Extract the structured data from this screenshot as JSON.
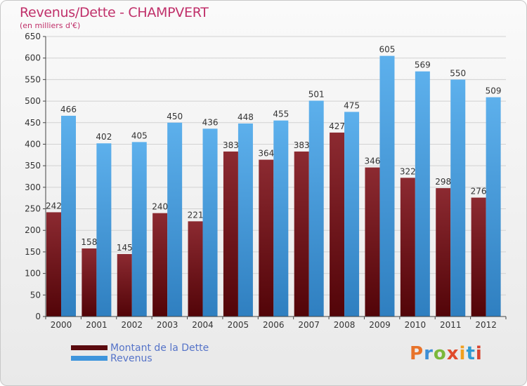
{
  "header": {
    "title": "Revenus/Dette - CHAMPVERT",
    "subtitle": "(en milliers d'€)"
  },
  "legend": {
    "items": [
      {
        "label": "Montant de la Dette",
        "color": "#7a1a1e"
      },
      {
        "label": "Revenus",
        "color": "#4aa3e6"
      }
    ]
  },
  "brand": {
    "letters": [
      "P",
      "r",
      "o",
      "x",
      "i",
      "t",
      "i"
    ],
    "colors": [
      "#e8732a",
      "#3d8fd6",
      "#7bb83a",
      "#e04b2c",
      "#f0a020",
      "#2f9bd3",
      "#d8452f"
    ]
  },
  "chart_data": {
    "type": "bar",
    "title": "Revenus/Dette - CHAMPVERT",
    "subtitle": "(en milliers d'€)",
    "xlabel": "",
    "ylabel": "",
    "ylim": [
      0,
      650
    ],
    "yticks": [
      0,
      50,
      100,
      150,
      200,
      250,
      300,
      350,
      400,
      450,
      500,
      550,
      600,
      650
    ],
    "grid": true,
    "legend_position": "bottom-left",
    "categories": [
      "2000",
      "2001",
      "2002",
      "2003",
      "2004",
      "2005",
      "2006",
      "2007",
      "2008",
      "2009",
      "2010",
      "2011",
      "2012"
    ],
    "series": [
      {
        "name": "Montant de la Dette",
        "color": "#7a1a1e",
        "values": [
          242,
          158,
          145,
          240,
          221,
          383,
          364,
          383,
          427,
          346,
          322,
          298,
          276
        ]
      },
      {
        "name": "Revenus",
        "color": "#4aa3e6",
        "values": [
          466,
          402,
          405,
          450,
          436,
          448,
          455,
          501,
          475,
          605,
          569,
          550,
          509
        ]
      }
    ]
  }
}
